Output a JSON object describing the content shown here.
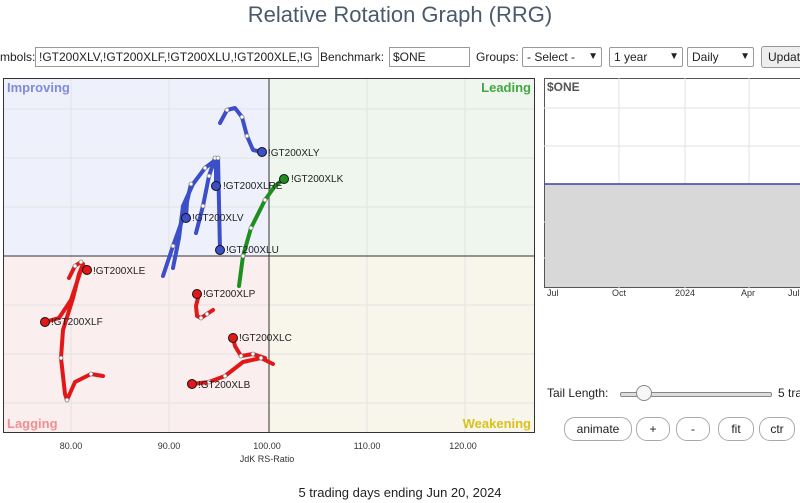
{
  "page_title": "Relative Rotation Graph (RRG)",
  "toolbar": {
    "symbols_label": "mbols:",
    "symbols_value": "!GT200XLV,!GT200XLF,!GT200XLU,!GT200XLE,!G",
    "benchmark_label": "Benchmark:",
    "benchmark_value": "$ONE",
    "groups_label": "Groups:",
    "groups_value": "- Select -",
    "period_value": "1 year",
    "frequency_value": "Daily",
    "update_label": "Updat"
  },
  "quadrants": {
    "improving": "Improving",
    "leading": "Leading",
    "lagging": "Lagging",
    "weakening": "Weakening"
  },
  "colors": {
    "improving": "#7f8bd9",
    "leading": "#43a843",
    "lagging": "#ef8f8f",
    "weakening": "#d8c21e",
    "blue_series": "#3c4fc8",
    "green_series": "#1e8f1e",
    "red_series": "#e01818"
  },
  "axis": {
    "x_label": "JdK RS-Ratio",
    "x_ticks": [
      "80.00",
      "90.00",
      "100.00",
      "110.00",
      "120.00"
    ]
  },
  "series": [
    {
      "label": "!GT200XLY",
      "quadrant": "improving"
    },
    {
      "label": "!GT200XLK",
      "quadrant": "leading"
    },
    {
      "label": "!GT200XLRE",
      "quadrant": "improving"
    },
    {
      "label": "!GT200XLV",
      "quadrant": "improving"
    },
    {
      "label": "!GT200XLU",
      "quadrant": "improving"
    },
    {
      "label": "!GT200XLE",
      "quadrant": "lagging"
    },
    {
      "label": "!GT200XLF",
      "quadrant": "lagging"
    },
    {
      "label": "!GT200XLP",
      "quadrant": "lagging"
    },
    {
      "label": "!GT200XLC",
      "quadrant": "lagging"
    },
    {
      "label": "!GT200XLB",
      "quadrant": "lagging"
    }
  ],
  "mini_chart": {
    "label": "$ONE",
    "ticks": [
      "Jul",
      "Oct",
      "2024",
      "Apr",
      "Jul"
    ]
  },
  "tail": {
    "label": "Tail Length:",
    "value_text": "5 tra",
    "value": 5
  },
  "buttons": {
    "animate": "animate",
    "plus": "+",
    "minus": "-",
    "fit": "fit",
    "ctr": "ctr"
  },
  "footer": "5 trading days ending Jun 20, 2024"
}
